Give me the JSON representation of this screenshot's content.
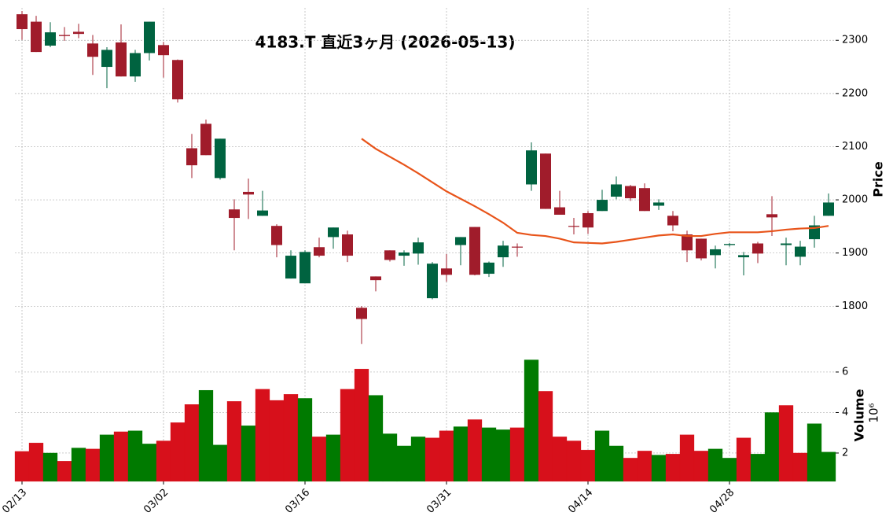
{
  "chart_data": {
    "type": "candlestick",
    "title": "4183.T  直近3ヶ月  (2026-05-13)",
    "categories": [
      "02/13",
      null,
      null,
      null,
      null,
      null,
      null,
      null,
      null,
      null,
      "03/02",
      null,
      null,
      null,
      null,
      null,
      null,
      null,
      null,
      null,
      "03/16",
      null,
      null,
      null,
      null,
      null,
      null,
      null,
      null,
      null,
      "03/31",
      null,
      null,
      null,
      null,
      null,
      null,
      null,
      null,
      null,
      "04/14",
      null,
      null,
      null,
      null,
      null,
      null,
      null,
      null,
      null,
      "04/28",
      null,
      null,
      null,
      null,
      null,
      null,
      null
    ],
    "open": [
      2349,
      2335,
      2290,
      2310,
      2316,
      2294,
      2250,
      2296,
      2232,
      2276,
      2291,
      2263,
      2097,
      2143,
      2041,
      1982,
      2015,
      1970,
      1951,
      1852,
      1843,
      1911,
      1930,
      1935,
      1797,
      1856,
      1905,
      1895,
      1899,
      1815,
      1871,
      1915,
      1949,
      1861,
      1892,
      1912,
      2029,
      2087,
      1986,
      1951,
      1975,
      1979,
      2006,
      2026,
      2022,
      1989,
      1970,
      1935,
      1927,
      1896,
      1915,
      1892,
      1918,
      1973,
      1915,
      1893,
      1926,
      1970
    ],
    "high": [
      2355,
      2346,
      2334,
      2325,
      2331,
      2310,
      2287,
      2330,
      2282,
      2335,
      2297,
      2264,
      2124,
      2151,
      2115,
      2001,
      2040,
      2017,
      1954,
      1905,
      1905,
      1929,
      1948,
      1942,
      1800,
      1856,
      1905,
      1905,
      1929,
      1883,
      1898,
      1930,
      1949,
      1884,
      1923,
      1918,
      2108,
      2087,
      2017,
      1966,
      1979,
      2019,
      2044,
      2028,
      2031,
      2001,
      1979,
      1942,
      1927,
      1914,
      1919,
      1902,
      1921,
      2007,
      1929,
      1923,
      1970,
      2012
    ],
    "low": [
      2301,
      2278,
      2287,
      2299,
      2304,
      2235,
      2210,
      2232,
      2222,
      2262,
      2230,
      2183,
      2041,
      2084,
      2038,
      1905,
      1964,
      1970,
      1892,
      1852,
      1843,
      1892,
      1908,
      1883,
      1729,
      1828,
      1884,
      1876,
      1878,
      1813,
      1846,
      1877,
      1858,
      1855,
      1874,
      1893,
      2017,
      1983,
      1972,
      1935,
      1936,
      1979,
      2001,
      1998,
      1979,
      1981,
      1941,
      1883,
      1886,
      1871,
      1912,
      1858,
      1881,
      1932,
      1877,
      1877,
      1910,
      1970
    ],
    "close": [
      2321,
      2278,
      2315,
      2308,
      2312,
      2269,
      2282,
      2232,
      2276,
      2335,
      2272,
      2189,
      2065,
      2084,
      2115,
      1966,
      2010,
      1980,
      1915,
      1895,
      1902,
      1895,
      1948,
      1895,
      1776,
      1849,
      1887,
      1901,
      1920,
      1880,
      1859,
      1930,
      1859,
      1882,
      1914,
      1911,
      2093,
      1983,
      1972,
      1950,
      1948,
      2000,
      2029,
      2003,
      1979,
      1995,
      1952,
      1905,
      1890,
      1907,
      1917,
      1896,
      1899,
      1967,
      1918,
      1912,
      1952,
      1995
    ],
    "up_color": "#006340",
    "down_color": "#a01c2b",
    "ma": {
      "values": [
        null,
        null,
        null,
        null,
        null,
        null,
        null,
        null,
        null,
        null,
        null,
        null,
        null,
        null,
        null,
        null,
        null,
        null,
        null,
        null,
        null,
        null,
        null,
        null,
        2115,
        2096,
        2081,
        2066,
        2050,
        2033,
        2016,
        2002,
        1988,
        1973,
        1957,
        1938,
        1934,
        1932,
        1927,
        1920,
        1919,
        1918,
        1921,
        1925,
        1929,
        1933,
        1935,
        1932,
        1932,
        1936,
        1939,
        1939,
        1939,
        1941,
        1944,
        1946,
        1947,
        1951
      ],
      "color": "#e8541a"
    },
    "ylim": [
      1725,
      2361
    ],
    "yticks": [
      1800,
      1900,
      2000,
      2100,
      2200,
      2300
    ],
    "ylabel": "Price",
    "grid": true,
    "volume": {
      "values": [
        2.08,
        2.5,
        2.0,
        1.6,
        2.25,
        2.2,
        2.9,
        3.05,
        3.1,
        2.45,
        2.6,
        3.5,
        4.4,
        5.1,
        2.4,
        4.55,
        3.35,
        5.15,
        4.6,
        4.9,
        4.7,
        2.8,
        2.9,
        5.15,
        6.15,
        4.85,
        2.95,
        2.35,
        2.8,
        2.75,
        3.1,
        3.3,
        3.65,
        3.25,
        3.15,
        3.25,
        6.6,
        5.05,
        2.8,
        2.6,
        2.15,
        3.1,
        2.35,
        1.75,
        2.1,
        1.9,
        1.95,
        2.9,
        2.1,
        2.2,
        1.75,
        2.75,
        1.95,
        4.0,
        4.35,
        2.0,
        3.45,
        2.05
      ],
      "up_color": "#007a00",
      "down_color": "#d7101b",
      "ylim": [
        0.6,
        7.28
      ],
      "yticks": [
        2,
        4,
        6
      ],
      "ylabel": "Volume",
      "multiplier": "10⁶"
    }
  }
}
